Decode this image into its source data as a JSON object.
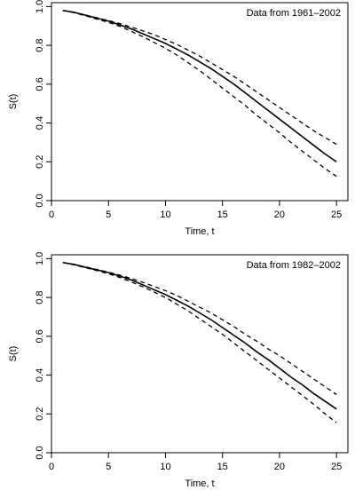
{
  "chart_data": [
    {
      "type": "line",
      "annotation": "Data from 1961–2002",
      "xlabel": "Time, t",
      "ylabel": "S(t)",
      "xlim": [
        0,
        26
      ],
      "ylim": [
        0,
        1.02
      ],
      "xticks": [
        0,
        5,
        10,
        15,
        20,
        25
      ],
      "yticks": [
        0.0,
        0.2,
        0.4,
        0.6,
        0.8,
        1.0
      ],
      "x": [
        1,
        2,
        3,
        4,
        5,
        6,
        7,
        8,
        9,
        10,
        11,
        12,
        13,
        14,
        15,
        16,
        17,
        18,
        19,
        20,
        21,
        22,
        23,
        24,
        25
      ],
      "series": [
        {
          "style": "solid",
          "values": [
            0.98,
            0.97,
            0.955,
            0.94,
            0.925,
            0.905,
            0.885,
            0.86,
            0.835,
            0.81,
            0.78,
            0.75,
            0.715,
            0.68,
            0.64,
            0.6,
            0.555,
            0.51,
            0.465,
            0.42,
            0.375,
            0.33,
            0.285,
            0.24,
            0.2
          ]
        },
        {
          "style": "dashed",
          "values": [
            0.98,
            0.97,
            0.956,
            0.942,
            0.928,
            0.912,
            0.894,
            0.875,
            0.855,
            0.83,
            0.805,
            0.775,
            0.745,
            0.71,
            0.675,
            0.64,
            0.6,
            0.56,
            0.52,
            0.48,
            0.44,
            0.4,
            0.36,
            0.325,
            0.29
          ]
        },
        {
          "style": "dashed",
          "values": [
            0.98,
            0.968,
            0.952,
            0.935,
            0.918,
            0.898,
            0.872,
            0.845,
            0.815,
            0.785,
            0.75,
            0.71,
            0.67,
            0.625,
            0.58,
            0.535,
            0.49,
            0.44,
            0.395,
            0.35,
            0.3,
            0.255,
            0.21,
            0.165,
            0.125
          ]
        }
      ]
    },
    {
      "type": "line",
      "annotation": "Data from 1982–2002",
      "xlabel": "Time, t",
      "ylabel": "S(t)",
      "xlim": [
        0,
        26
      ],
      "ylim": [
        0,
        1.02
      ],
      "xticks": [
        0,
        5,
        10,
        15,
        20,
        25
      ],
      "yticks": [
        0.0,
        0.2,
        0.4,
        0.6,
        0.8,
        1.0
      ],
      "x": [
        1,
        2,
        3,
        4,
        5,
        6,
        7,
        8,
        9,
        10,
        11,
        12,
        13,
        14,
        15,
        16,
        17,
        18,
        19,
        20,
        21,
        22,
        23,
        24,
        25
      ],
      "series": [
        {
          "style": "solid",
          "values": [
            0.98,
            0.97,
            0.955,
            0.942,
            0.928,
            0.91,
            0.89,
            0.865,
            0.84,
            0.815,
            0.785,
            0.755,
            0.72,
            0.685,
            0.645,
            0.605,
            0.565,
            0.52,
            0.48,
            0.435,
            0.39,
            0.35,
            0.305,
            0.265,
            0.225
          ]
        },
        {
          "style": "dashed",
          "values": [
            0.98,
            0.97,
            0.957,
            0.944,
            0.93,
            0.915,
            0.898,
            0.878,
            0.857,
            0.835,
            0.81,
            0.78,
            0.75,
            0.72,
            0.685,
            0.65,
            0.61,
            0.575,
            0.535,
            0.5,
            0.46,
            0.42,
            0.38,
            0.34,
            0.3
          ]
        },
        {
          "style": "dashed",
          "values": [
            0.98,
            0.968,
            0.953,
            0.938,
            0.922,
            0.903,
            0.88,
            0.855,
            0.828,
            0.8,
            0.765,
            0.73,
            0.69,
            0.65,
            0.61,
            0.565,
            0.52,
            0.475,
            0.43,
            0.385,
            0.34,
            0.295,
            0.25,
            0.2,
            0.155
          ]
        }
      ]
    }
  ]
}
